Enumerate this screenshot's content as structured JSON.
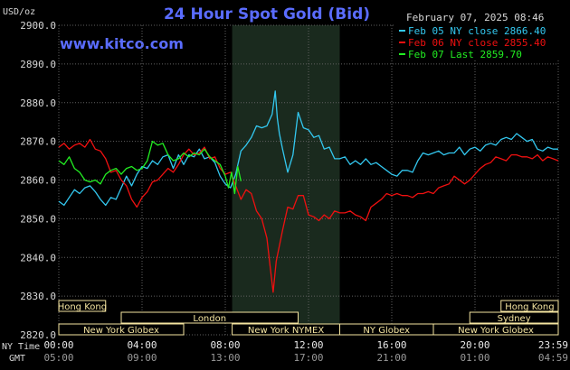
{
  "header": {
    "title": "24 Hour Spot Gold (Bid)",
    "unit": "USD/oz",
    "site": "www.kitco.com",
    "timestamp": "February 07, 2025 08:46"
  },
  "colors": {
    "background": "#000000",
    "plot_highlight": "#1a2a1e",
    "grid": "#606060",
    "title": "#5a6cff",
    "site": "#5a6cff",
    "text": "#d8d8d8",
    "market_box_fill": "#f4e4a0",
    "market_box_text": "#a05820",
    "feb05": "#33c8f0",
    "feb06": "#f01010",
    "feb07": "#22ee22"
  },
  "markets": {
    "row1": [
      {
        "label": "Hong Kong",
        "start": 0.0,
        "end": 2.25
      },
      {
        "label": "Hong Kong",
        "start": 21.25,
        "end": 24.0
      }
    ],
    "row2": [
      {
        "label": "London",
        "start": 3.0,
        "end": 11.5
      },
      {
        "label": "Sydney",
        "start": 19.75,
        "end": 24.0
      }
    ],
    "row3": [
      {
        "label": "New York Globex",
        "start": 0.0,
        "end": 6.0
      },
      {
        "label": "New York NYMEX",
        "start": 8.33,
        "end": 13.5
      },
      {
        "label": "NY Globex",
        "start": 13.5,
        "end": 18.0
      },
      {
        "label": "New York Globex",
        "start": 18.0,
        "end": 24.0
      }
    ]
  },
  "time_axis": {
    "ny_label": "NY Time",
    "gmt_label": "GMT",
    "ticks": [
      {
        "hour": 0,
        "ny": "00:00",
        "gmt": "05:00"
      },
      {
        "hour": 4,
        "ny": "04:00",
        "gmt": "09:00"
      },
      {
        "hour": 8,
        "ny": "08:00",
        "gmt": "13:00"
      },
      {
        "hour": 12,
        "ny": "12:00",
        "gmt": "17:00"
      },
      {
        "hour": 16,
        "ny": "16:00",
        "gmt": "21:00"
      },
      {
        "hour": 20,
        "ny": "20:00",
        "gmt": "01:00"
      },
      {
        "hour": 24,
        "ny": "23:59",
        "gmt": "04:59"
      }
    ]
  },
  "chart_data": {
    "type": "line",
    "title": "24 Hour Spot Gold (Bid)",
    "ylabel": "USD/oz",
    "xlabel": "",
    "xlim": [
      0,
      24
    ],
    "ylim": [
      2820,
      2900
    ],
    "yticks": [
      2820.0,
      2830.0,
      2840.0,
      2850.0,
      2860.0,
      2870.0,
      2880.0,
      2890.0,
      2900.0
    ],
    "grid": true,
    "highlight_range": [
      8.33,
      13.5
    ],
    "legend_position": "top-right",
    "series": [
      {
        "name": "Feb 05 NY close 2866.40",
        "color": "#33c8f0",
        "x": [
          0,
          0.25,
          0.5,
          0.75,
          1.0,
          1.25,
          1.5,
          1.75,
          2.0,
          2.25,
          2.5,
          2.75,
          3.0,
          3.25,
          3.5,
          3.75,
          4.0,
          4.25,
          4.5,
          4.75,
          5.0,
          5.25,
          5.5,
          5.75,
          6.0,
          6.25,
          6.5,
          6.75,
          7.0,
          7.25,
          7.5,
          7.75,
          8.0,
          8.25,
          8.5,
          8.75,
          9.0,
          9.25,
          9.5,
          9.75,
          10.0,
          10.25,
          10.4,
          10.5,
          10.6,
          10.75,
          11.0,
          11.25,
          11.5,
          11.75,
          12.0,
          12.25,
          12.5,
          12.75,
          13.0,
          13.25,
          13.5,
          13.75,
          14.0,
          14.25,
          14.5,
          14.75,
          15.0,
          15.25,
          15.5,
          15.75,
          16.0,
          16.25,
          16.5,
          16.75,
          17.0,
          17.25,
          17.5,
          17.75,
          18.0,
          18.25,
          18.5,
          18.75,
          19.0,
          19.25,
          19.5,
          19.75,
          20.0,
          20.25,
          20.5,
          20.75,
          21.0,
          21.25,
          21.5,
          21.75,
          22.0,
          22.25,
          22.5,
          22.75,
          23.0,
          23.25,
          23.5,
          23.75,
          24.0
        ],
        "y": [
          2854.5,
          2853.5,
          2855.5,
          2857.5,
          2856.5,
          2858.0,
          2858.5,
          2857.0,
          2855.0,
          2853.5,
          2855.5,
          2855.0,
          2858.0,
          2861.0,
          2858.5,
          2861.5,
          2863.5,
          2863.0,
          2865.0,
          2864.0,
          2866.0,
          2866.5,
          2863.0,
          2866.5,
          2864.0,
          2866.5,
          2866.0,
          2868.0,
          2865.5,
          2866.0,
          2864.5,
          2861.0,
          2859.0,
          2858.0,
          2861.5,
          2867.5,
          2869.0,
          2871.0,
          2874.0,
          2873.5,
          2874.0,
          2877.0,
          2883.0,
          2876.0,
          2872.0,
          2868.0,
          2862.0,
          2866.5,
          2877.5,
          2873.5,
          2873.0,
          2871.0,
          2871.5,
          2868.0,
          2868.5,
          2865.5,
          2865.5,
          2866.0,
          2864.0,
          2865.0,
          2864.0,
          2865.5,
          2864.0,
          2864.5,
          2863.5,
          2862.5,
          2861.5,
          2861.0,
          2862.5,
          2862.5,
          2862.0,
          2865.0,
          2867.0,
          2866.5,
          2867.0,
          2867.5,
          2866.5,
          2867.0,
          2867.0,
          2868.5,
          2866.5,
          2868.0,
          2868.5,
          2867.5,
          2869.0,
          2869.5,
          2869.0,
          2870.5,
          2871.0,
          2870.5,
          2872.0,
          2871.0,
          2870.0,
          2870.5,
          2868.0,
          2867.5,
          2868.5,
          2868.0,
          2868.0
        ]
      },
      {
        "name": "Feb 06 NY close 2855.40",
        "color": "#f01010",
        "x": [
          0,
          0.25,
          0.5,
          0.75,
          1.0,
          1.25,
          1.5,
          1.75,
          2.0,
          2.25,
          2.5,
          2.75,
          3.0,
          3.25,
          3.5,
          3.75,
          4.0,
          4.25,
          4.5,
          4.75,
          5.0,
          5.25,
          5.5,
          5.75,
          6.0,
          6.25,
          6.5,
          6.75,
          7.0,
          7.25,
          7.5,
          7.75,
          8.0,
          8.25,
          8.5,
          8.75,
          9.0,
          9.25,
          9.5,
          9.75,
          10.0,
          10.15,
          10.3,
          10.45,
          10.6,
          10.75,
          11.0,
          11.25,
          11.5,
          11.75,
          12.0,
          12.25,
          12.5,
          12.75,
          13.0,
          13.25,
          13.5,
          13.75,
          14.0,
          14.25,
          14.5,
          14.75,
          15.0,
          15.25,
          15.5,
          15.75,
          16.0,
          16.25,
          16.5,
          16.75,
          17.0,
          17.25,
          17.5,
          17.75,
          18.0,
          18.25,
          18.5,
          18.75,
          19.0,
          19.25,
          19.5,
          19.75,
          20.0,
          20.25,
          20.5,
          20.75,
          21.0,
          21.25,
          21.5,
          21.75,
          22.0,
          22.25,
          22.5,
          22.75,
          23.0,
          23.25,
          23.5,
          23.75,
          24.0
        ],
        "y": [
          2868.5,
          2869.5,
          2868.0,
          2869.0,
          2869.5,
          2868.5,
          2870.5,
          2868.0,
          2867.5,
          2865.5,
          2862.0,
          2862.5,
          2860.0,
          2858.5,
          2855.0,
          2853.0,
          2855.5,
          2857.0,
          2859.5,
          2860.0,
          2861.5,
          2863.0,
          2862.0,
          2864.0,
          2866.5,
          2868.0,
          2866.5,
          2867.0,
          2868.5,
          2865.5,
          2866.0,
          2863.0,
          2861.5,
          2862.0,
          2858.5,
          2855.0,
          2857.5,
          2856.5,
          2852.0,
          2850.0,
          2845.0,
          2838.0,
          2831.0,
          2839.0,
          2843.0,
          2847.0,
          2853.0,
          2852.5,
          2856.0,
          2856.0,
          2851.0,
          2850.5,
          2849.5,
          2851.0,
          2850.0,
          2852.0,
          2851.5,
          2851.5,
          2852.0,
          2851.0,
          2850.5,
          2849.5,
          2853.0,
          2854.0,
          2855.0,
          2856.5,
          2856.0,
          2856.5,
          2856.0,
          2856.0,
          2855.5,
          2856.5,
          2856.5,
          2857.0,
          2856.5,
          2858.0,
          2858.5,
          2859.0,
          2861.0,
          2860.0,
          2859.0,
          2860.0,
          2861.5,
          2863.0,
          2864.0,
          2864.5,
          2866.0,
          2865.5,
          2865.0,
          2866.5,
          2866.5,
          2866.0,
          2866.0,
          2865.5,
          2866.5,
          2865.0,
          2866.0,
          2865.5,
          2865.0
        ]
      },
      {
        "name": "Feb 07 Last 2859.70",
        "color": "#22ee22",
        "x": [
          0,
          0.25,
          0.5,
          0.75,
          1.0,
          1.25,
          1.5,
          1.75,
          2.0,
          2.25,
          2.5,
          2.75,
          3.0,
          3.25,
          3.5,
          3.75,
          4.0,
          4.25,
          4.5,
          4.75,
          5.0,
          5.25,
          5.5,
          5.75,
          6.0,
          6.25,
          6.5,
          6.75,
          7.0,
          7.25,
          7.5,
          7.75,
          8.0,
          8.15,
          8.3,
          8.45,
          8.6,
          8.75
        ],
        "y": [
          2865.0,
          2864.0,
          2866.0,
          2863.0,
          2862.0,
          2860.0,
          2859.5,
          2860.0,
          2859.0,
          2861.5,
          2862.5,
          2863.0,
          2861.5,
          2863.0,
          2863.5,
          2862.5,
          2863.0,
          2865.0,
          2870.0,
          2869.0,
          2869.5,
          2866.5,
          2865.0,
          2865.5,
          2867.0,
          2866.0,
          2867.0,
          2866.5,
          2868.0,
          2866.0,
          2865.0,
          2864.0,
          2861.0,
          2858.0,
          2862.0,
          2856.5,
          2863.5,
          2859.7
        ]
      }
    ]
  }
}
